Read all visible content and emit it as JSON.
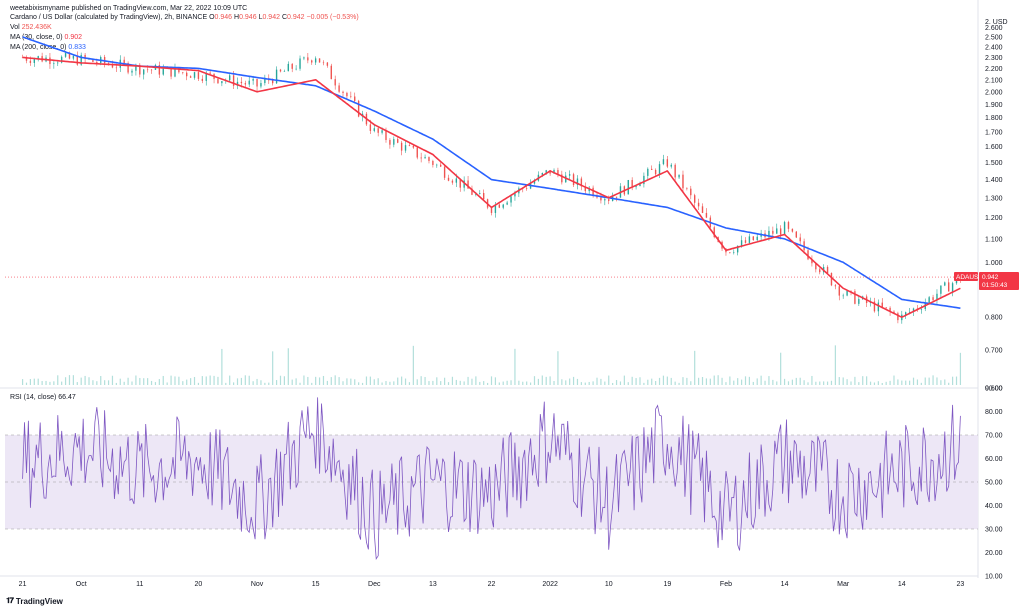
{
  "header": {
    "published": "weetabixismyname published on TradingView.com, Mar 22, 2022 10:09 UTC",
    "symbol": "Cardano / US Dollar (calculated by TradingView), 2h, BINANCE",
    "ohlc": {
      "o_label": "O",
      "o": "0.946",
      "h_label": "H",
      "h": "0.946",
      "l_label": "L",
      "l": "0.942",
      "c_label": "C",
      "c": "0.942",
      "change": "−0.005 (−0.53%)"
    },
    "vol_label": "Vol",
    "vol": "252.436K",
    "ma30_label": "MA (30, close, 0)",
    "ma30": "0.902",
    "ma200_label": "MA (200, close, 0)",
    "ma200": "0.833",
    "rsi_label": "RSI (14, close)",
    "rsi": "66.47"
  },
  "price_axis": {
    "currency": "USD",
    "ticks": [
      "2.600",
      "2.500",
      "2.400",
      "2.300",
      "2.200",
      "2.100",
      "2.000",
      "1.900",
      "1.800",
      "1.700",
      "1.600",
      "1.500",
      "1.400",
      "1.300",
      "1.200",
      "1.100",
      "1.000",
      "0.800",
      "0.700",
      "0.600"
    ]
  },
  "price_badge": {
    "symbol": "ADAUSD",
    "price": "0.942",
    "countdown": "01:50:43"
  },
  "rsi_axis": {
    "ticks": [
      "90.00",
      "80.00",
      "70.00",
      "60.00",
      "50.00",
      "40.00",
      "30.00",
      "20.00",
      "10.00"
    ]
  },
  "time_axis": {
    "ticks": [
      "21",
      "Oct",
      "11",
      "20",
      "Nov",
      "15",
      "Dec",
      "13",
      "22",
      "2022",
      "10",
      "19",
      "Feb",
      "14",
      "Mar",
      "14",
      "23"
    ]
  },
  "footer": {
    "brand": "TradingView"
  },
  "colors": {
    "price_line": "#131722",
    "ma30": "#f23645",
    "ma200": "#2962ff",
    "rsi_line": "#7e57c2",
    "rsi_band": "#ede7f6",
    "badge": "#f23645",
    "volume": "#b2dfdb"
  },
  "chart_data": [
    {
      "type": "line",
      "title": "Cardano / US Dollar (calculated by TradingView), 2h, BINANCE",
      "x": [
        "21",
        "Oct",
        "11",
        "20",
        "Nov",
        "15",
        "Dec",
        "13",
        "22",
        "2022",
        "10",
        "19",
        "Feb",
        "14",
        "Mar",
        "14",
        "23"
      ],
      "ylim": [
        0.6,
        2.7
      ],
      "yscale": "log",
      "series": [
        {
          "name": "",
          "values": [
            2.3,
            2.28,
            2.2,
            2.15,
            2.05,
            2.32,
            1.7,
            1.5,
            1.25,
            1.45,
            1.3,
            1.5,
            1.05,
            1.15,
            0.88,
            0.8,
            0.94
          ]
        },
        {
          "name": "MA (30, close, 0)",
          "values": [
            2.3,
            2.25,
            2.22,
            2.18,
            2.0,
            2.1,
            1.75,
            1.55,
            1.25,
            1.45,
            1.3,
            1.45,
            1.05,
            1.12,
            0.9,
            0.8,
            0.9
          ]
        },
        {
          "name": "MA (200, close, 0)",
          "values": [
            2.5,
            2.3,
            2.22,
            2.2,
            2.12,
            2.05,
            1.85,
            1.65,
            1.4,
            1.35,
            1.3,
            1.25,
            1.15,
            1.1,
            1.0,
            0.86,
            0.83
          ]
        }
      ],
      "grid": false
    },
    {
      "type": "line",
      "title": "RSI (14, close)",
      "x": [
        "21",
        "Oct",
        "11",
        "20",
        "Nov",
        "15",
        "Dec",
        "13",
        "22",
        "2022",
        "10",
        "19",
        "Feb",
        "14",
        "Mar",
        "14",
        "23"
      ],
      "ylim": [
        10,
        90
      ],
      "bands": [
        30,
        70
      ],
      "series": [
        {
          "name": "RSI (14, close)",
          "values": [
            58,
            65,
            55,
            60,
            40,
            75,
            35,
            50,
            45,
            70,
            40,
            70,
            35,
            60,
            45,
            55,
            66
          ]
        }
      ]
    }
  ]
}
